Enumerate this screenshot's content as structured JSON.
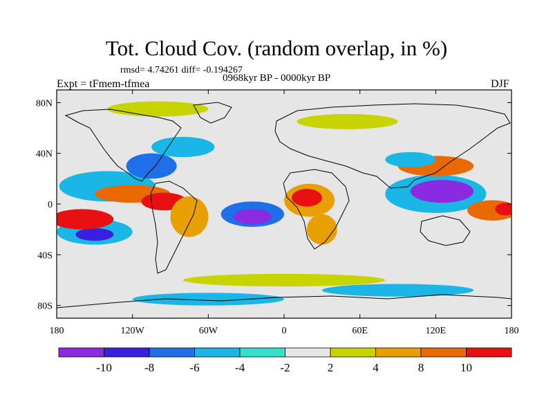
{
  "title": "Tot. Cloud Cov. (random overlap, in %)",
  "stats": "rmsd= 4.74261 diff= -0.194267",
  "period": "0968kyr BP - 0000kyr BP",
  "experiment": "Expt = tFmem-tfmea",
  "season": "DJF",
  "map": {
    "projection": "cylindrical-equidistant",
    "lon_range": [
      -180,
      180
    ],
    "lat_range": [
      -90,
      90
    ],
    "ocean_land_background": "#e6e6e6",
    "x_ticks": [
      {
        "lon": -180,
        "label": "180"
      },
      {
        "lon": -120,
        "label": "120W"
      },
      {
        "lon": -60,
        "label": "60W"
      },
      {
        "lon": 0,
        "label": "0"
      },
      {
        "lon": 60,
        "label": "60E"
      },
      {
        "lon": 120,
        "label": "120E"
      },
      {
        "lon": 180,
        "label": "180"
      }
    ],
    "y_ticks": [
      {
        "lat": 80,
        "label": "80N"
      },
      {
        "lat": 40,
        "label": "40N"
      },
      {
        "lat": 0,
        "label": "0"
      },
      {
        "lat": -40,
        "label": "40S"
      },
      {
        "lat": -80,
        "label": "80S"
      }
    ]
  },
  "colorbar": {
    "colors": [
      "#8a2be2",
      "#3a1fe0",
      "#1e6fe8",
      "#19b6e6",
      "#34e0c8",
      "#e6e6e6",
      "#c8d400",
      "#e8a000",
      "#e86a00",
      "#e81010"
    ],
    "labels": [
      {
        "boundary": 1,
        "text": "-10"
      },
      {
        "boundary": 2,
        "text": "-8"
      },
      {
        "boundary": 3,
        "text": "-6"
      },
      {
        "boundary": 4,
        "text": "-4"
      },
      {
        "boundary": 5,
        "text": "-2"
      },
      {
        "boundary": 6,
        "text": "2"
      },
      {
        "boundary": 7,
        "text": "4"
      },
      {
        "boundary": 8,
        "text": "8"
      },
      {
        "boundary": 9,
        "text": "10"
      }
    ]
  },
  "anomaly_regions": [
    {
      "lon": -140,
      "lat": 14,
      "rx": 38,
      "ry": 12,
      "level": "-4"
    },
    {
      "lon": -150,
      "lat": -22,
      "rx": 30,
      "ry": 10,
      "level": "-4"
    },
    {
      "lon": -150,
      "lat": -24,
      "rx": 15,
      "ry": 5,
      "level": "-8"
    },
    {
      "lon": -160,
      "lat": -12,
      "rx": 25,
      "ry": 8,
      "level": "10"
    },
    {
      "lon": -120,
      "lat": 8,
      "rx": 30,
      "ry": 7,
      "level": "8"
    },
    {
      "lon": -95,
      "lat": 2,
      "rx": 18,
      "ry": 7,
      "level": "10"
    },
    {
      "lon": -75,
      "lat": -10,
      "rx": 15,
      "ry": 16,
      "level": "4"
    },
    {
      "lon": -105,
      "lat": 30,
      "rx": 20,
      "ry": 10,
      "level": "-6"
    },
    {
      "lon": -80,
      "lat": 45,
      "rx": 25,
      "ry": 8,
      "level": "-4"
    },
    {
      "lon": -25,
      "lat": -8,
      "rx": 25,
      "ry": 10,
      "level": "-6"
    },
    {
      "lon": -25,
      "lat": -10,
      "rx": 15,
      "ry": 6,
      "level": "-10"
    },
    {
      "lon": 20,
      "lat": 3,
      "rx": 20,
      "ry": 13,
      "level": "4"
    },
    {
      "lon": 18,
      "lat": 5,
      "rx": 12,
      "ry": 7,
      "level": "10"
    },
    {
      "lon": 30,
      "lat": -20,
      "rx": 12,
      "ry": 12,
      "level": "4"
    },
    {
      "lon": 120,
      "lat": 8,
      "rx": 40,
      "ry": 15,
      "level": "-4"
    },
    {
      "lon": 125,
      "lat": 10,
      "rx": 25,
      "ry": 9,
      "level": "-10"
    },
    {
      "lon": 120,
      "lat": 30,
      "rx": 30,
      "ry": 8,
      "level": "8"
    },
    {
      "lon": 100,
      "lat": 35,
      "rx": 20,
      "ry": 6,
      "level": "-4"
    },
    {
      "lon": 165,
      "lat": -5,
      "rx": 20,
      "ry": 8,
      "level": "8"
    },
    {
      "lon": 175,
      "lat": -4,
      "rx": 8,
      "ry": 5,
      "level": "10"
    },
    {
      "lon": 50,
      "lat": 65,
      "rx": 40,
      "ry": 6,
      "level": "2"
    },
    {
      "lon": -100,
      "lat": 75,
      "rx": 40,
      "ry": 6,
      "level": "2"
    },
    {
      "lon": 0,
      "lat": -60,
      "rx": 80,
      "ry": 5,
      "level": "2"
    },
    {
      "lon": -60,
      "lat": -75,
      "rx": 60,
      "ry": 5,
      "level": "-4"
    },
    {
      "lon": 90,
      "lat": -68,
      "rx": 60,
      "ry": 5,
      "level": "-4"
    }
  ]
}
